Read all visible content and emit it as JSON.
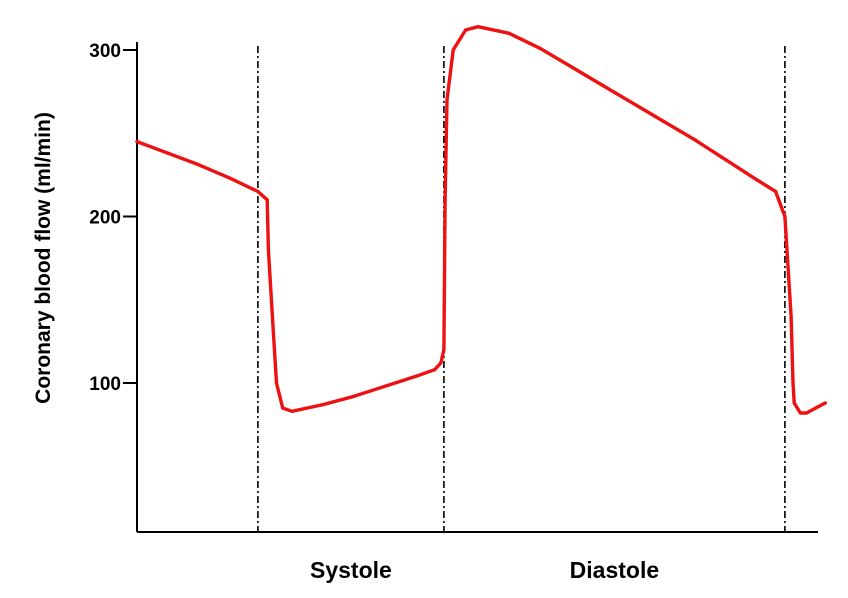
{
  "chart_data": {
    "type": "line",
    "title": "",
    "xlabel": "",
    "ylabel": "Coronary blood flow (ml/min)",
    "ylim": [
      0,
      315
    ],
    "yticks": [
      {
        "value": 100,
        "label": "100"
      },
      {
        "value": 200,
        "label": "200"
      },
      {
        "value": 300,
        "label": "300"
      }
    ],
    "grid": false,
    "phase_boundaries": [
      0.195,
      0.495,
      1.045
    ],
    "phase_labels": [
      {
        "label": "Systole",
        "x_center": 0.345
      },
      {
        "label": "Diastole",
        "x_center": 0.77
      }
    ],
    "series": [
      {
        "color": "#ee1111",
        "x": [
          0.0,
          0.05,
          0.1,
          0.15,
          0.195,
          0.21,
          0.212,
          0.22,
          0.225,
          0.235,
          0.25,
          0.3,
          0.35,
          0.4,
          0.45,
          0.48,
          0.49,
          0.495,
          0.497,
          0.5,
          0.51,
          0.53,
          0.55,
          0.6,
          0.65,
          0.7,
          0.75,
          0.8,
          0.85,
          0.9,
          0.95,
          1.0,
          1.03,
          1.045,
          1.055,
          1.058,
          1.06,
          1.07,
          1.08,
          1.1,
          1.11
        ],
        "y": [
          245,
          238,
          231,
          223,
          215,
          210,
          180,
          130,
          100,
          85,
          83,
          87,
          92,
          98,
          104,
          108,
          112,
          120,
          210,
          270,
          300,
          312,
          314,
          310,
          301,
          290,
          279,
          268,
          257,
          246,
          234,
          222,
          215,
          200,
          140,
          100,
          88,
          82,
          82,
          86,
          88
        ]
      }
    ]
  }
}
